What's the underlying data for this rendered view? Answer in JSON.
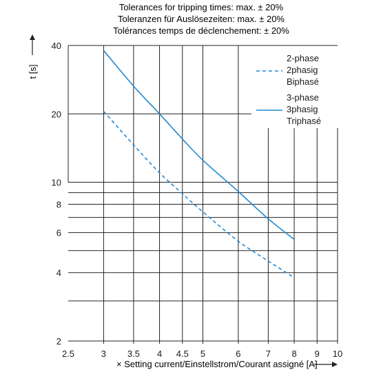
{
  "tolerance_lines": [
    "Tolerances for tripping times: max. ± 20%",
    "Toleranzen für Auslösezeiten: max. ± 20%",
    "Tolérances temps de déclenchement: ± 20%"
  ],
  "chart_data": {
    "type": "line",
    "title": "",
    "xlabel": "× Setting current/Einstellstrom/Courant assigné [A]",
    "ylabel": "t [s]",
    "x_scale": "log",
    "y_scale": "log",
    "xlim": [
      2.5,
      10
    ],
    "ylim": [
      2,
      40
    ],
    "x_ticks": [
      2.5,
      3,
      3.5,
      4,
      4.5,
      5,
      6,
      7,
      8,
      9,
      10
    ],
    "x_tick_labels": [
      "2.5",
      "3",
      "3.5",
      "4",
      "4.5",
      "5",
      "6",
      "7",
      "8",
      "9",
      "10"
    ],
    "y_ticks": [
      2,
      4,
      6,
      8,
      10,
      20,
      40
    ],
    "y_tick_labels": [
      "2",
      "4",
      "6",
      "8",
      "10",
      "20",
      "40"
    ],
    "grid": true,
    "legend_position": "top-right",
    "colors": {
      "series": "#1f88d1",
      "grid": "#222222",
      "axis_arrow": "#222222"
    },
    "series": [
      {
        "name": "2-phase\n2phasig\nBiphasé",
        "style": "dashed",
        "x": [
          3,
          3.5,
          4,
          4.5,
          5,
          6,
          7,
          8
        ],
        "y": [
          20.5,
          14.6,
          11.0,
          8.9,
          7.4,
          5.5,
          4.5,
          3.8
        ]
      },
      {
        "name": "3-phase\n3phasig\nTriphasé",
        "style": "solid",
        "x": [
          3,
          3.5,
          4,
          4.5,
          5,
          6,
          7,
          8
        ],
        "y": [
          38,
          26.5,
          20,
          15.5,
          12.5,
          9.1,
          6.9,
          5.6
        ]
      }
    ]
  }
}
